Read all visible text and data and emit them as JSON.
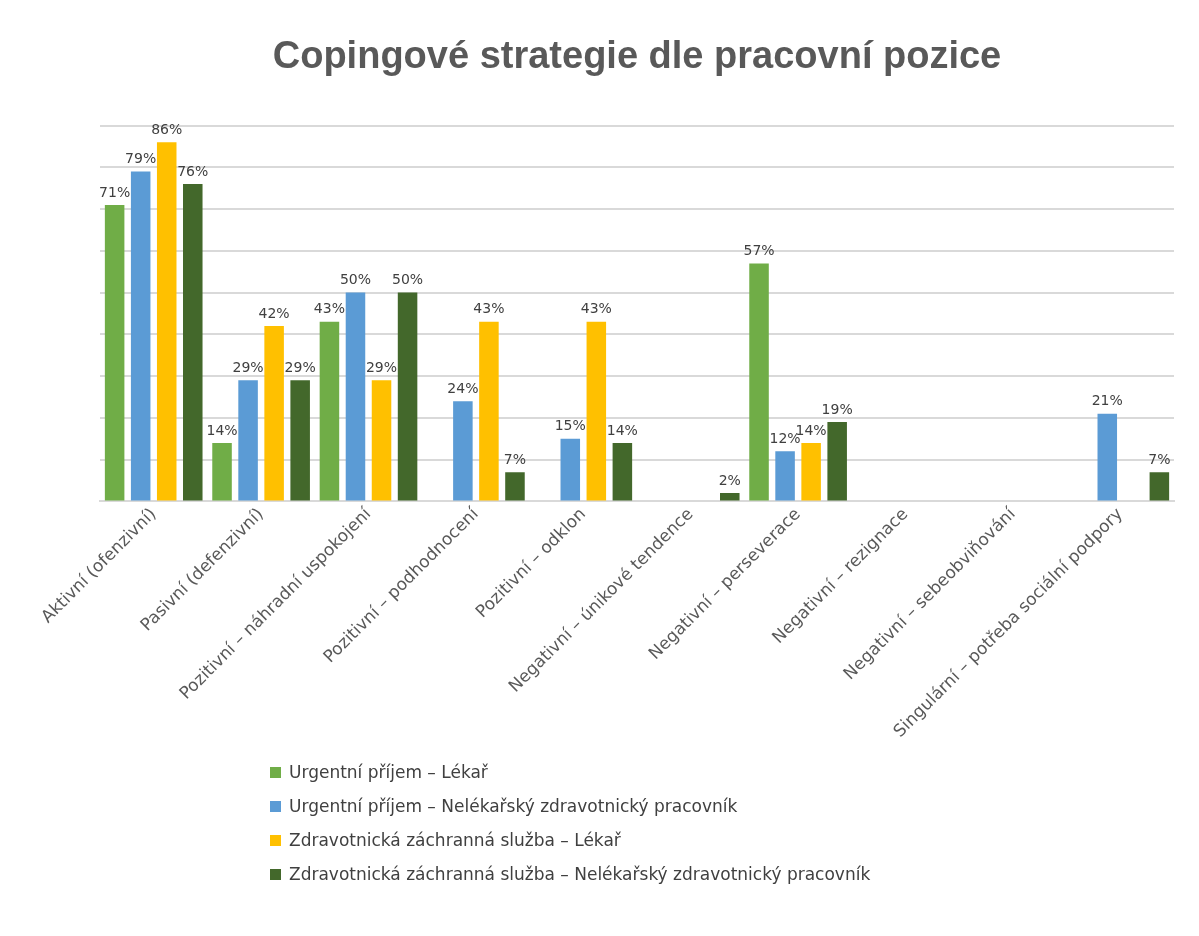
{
  "chart_data": {
    "type": "bar",
    "title": "Copingové strategie dle pracovní pozice",
    "categories": [
      "Aktivní (ofenzivní)",
      "Pasivní (defenzivní)",
      "Pozitivní – náhradní uspokojení",
      "Pozitivní – podhodnocení",
      "Pozitivní – odklon",
      "Negativní – únikové tendence",
      "Negativní – perseverace",
      "Negativní – rezignace",
      "Negativní – sebeobviňování",
      "Singulární – potřeba sociální podpory"
    ],
    "series": [
      {
        "name": "Urgentní příjem – Lékař",
        "color": "#70ad47",
        "values": [
          71,
          14,
          43,
          null,
          null,
          null,
          57,
          null,
          null,
          null
        ],
        "value_labels": [
          "71%",
          "14%",
          "43%",
          null,
          null,
          null,
          "57%",
          null,
          null,
          null
        ]
      },
      {
        "name": "Urgentní příjem – Nelékařský zdravotnický pracovník",
        "color": "#5b9bd5",
        "values": [
          79,
          29,
          50,
          24,
          15,
          null,
          12,
          null,
          null,
          21
        ],
        "value_labels": [
          "79%",
          "29%",
          "50%",
          "24%",
          "15%",
          null,
          "12%",
          null,
          null,
          "21%"
        ]
      },
      {
        "name": "Zdravotnická záchranná služba – Lékař",
        "color": "#ffc000",
        "values": [
          86,
          42,
          29,
          43,
          43,
          null,
          14,
          null,
          null,
          null
        ],
        "value_labels": [
          "86%",
          "42%",
          "29%",
          "43%",
          "43%",
          null,
          "14%",
          null,
          null,
          null
        ]
      },
      {
        "name": "Zdravotnická záchranná služba – Nelékařský zdravotnický pracovník",
        "color": "#43682b",
        "values": [
          76,
          29,
          50,
          7,
          14,
          2,
          19,
          null,
          null,
          7
        ],
        "value_labels": [
          "76%",
          "29%",
          "50%",
          "7%",
          "14%",
          "2%",
          "19%",
          null,
          null,
          "7%"
        ]
      }
    ],
    "ylim": [
      0,
      90
    ],
    "yticks": [
      {
        "value": 0,
        "label": null
      },
      {
        "value": 10,
        "label": null
      },
      {
        "value": 20,
        "label": null
      },
      {
        "value": 30,
        "label": null
      },
      {
        "value": 40,
        "label": null
      },
      {
        "value": 50,
        "label": null
      },
      {
        "value": 60,
        "label": null
      },
      {
        "value": 70,
        "label": null
      },
      {
        "value": 80,
        "label": null
      },
      {
        "value": 90,
        "label": null
      }
    ],
    "tick_labels": "x",
    "grid": "y",
    "legend": "bottom"
  }
}
